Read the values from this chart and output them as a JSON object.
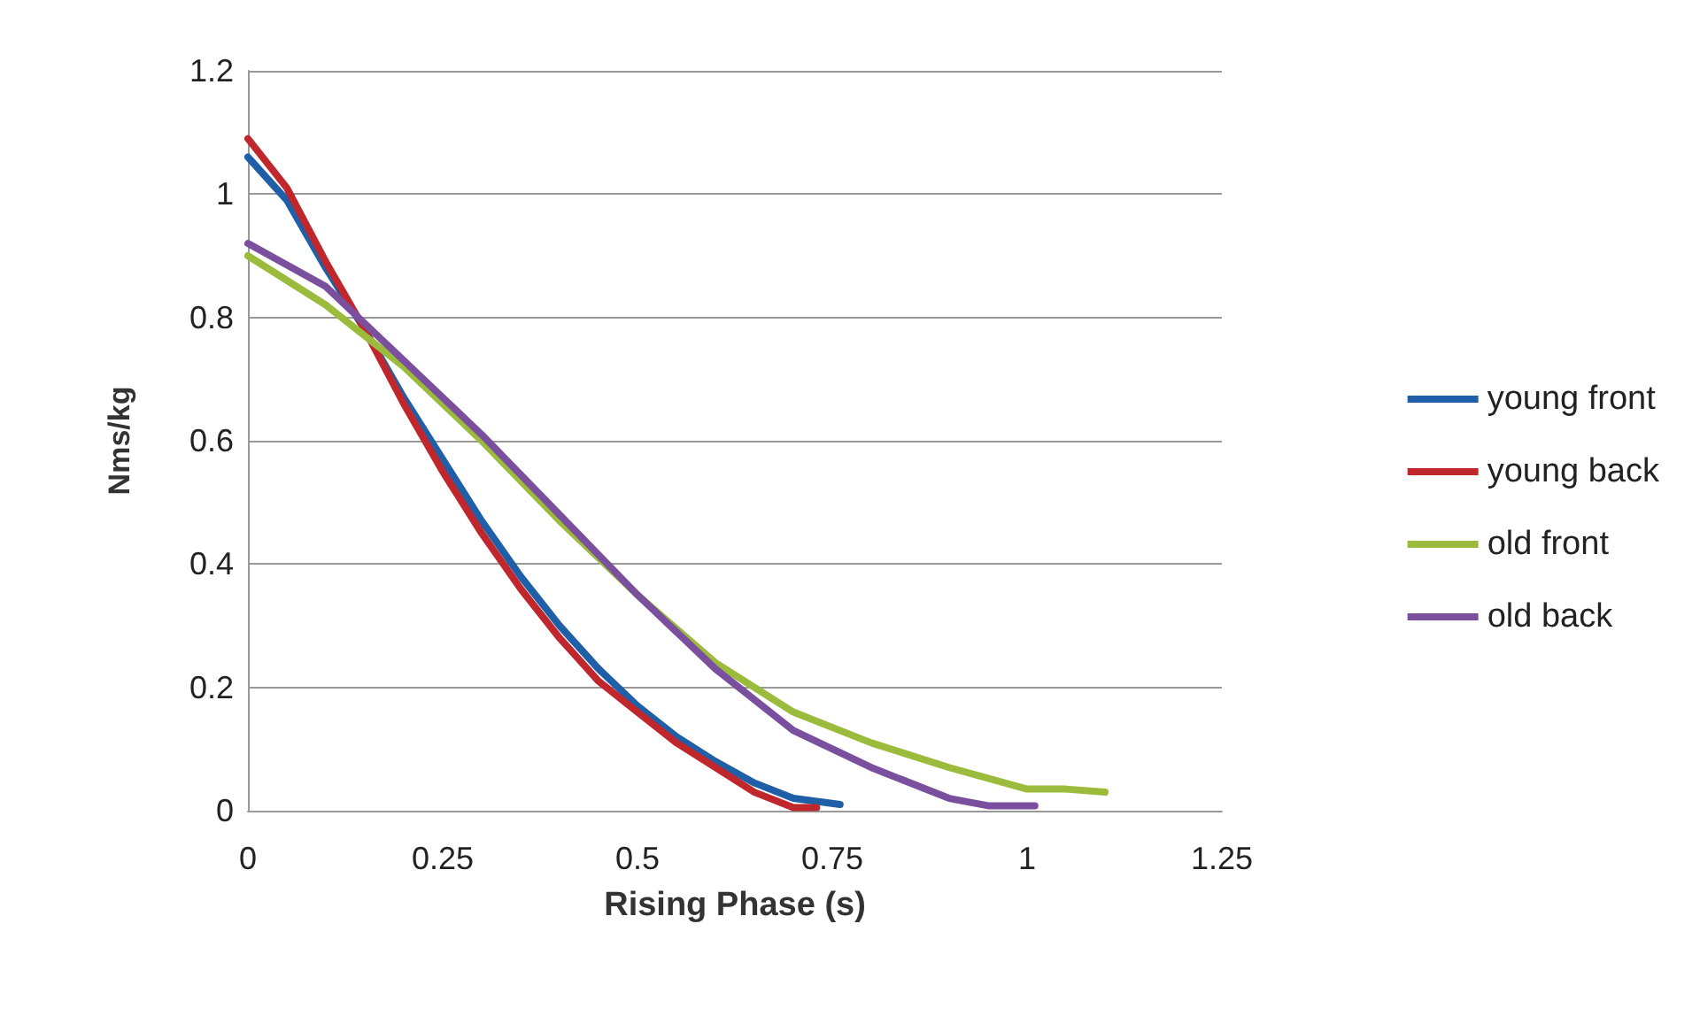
{
  "chart_data": {
    "type": "line",
    "xlabel": "Rising Phase (s)",
    "ylabel": "Nms/kg",
    "xlim": [
      0,
      1.25
    ],
    "xticks": [
      0,
      0.25,
      0.5,
      0.75,
      1,
      1.25
    ],
    "ylim": [
      0,
      1.2
    ],
    "yticks": [
      0,
      0.2,
      0.4,
      0.6,
      0.8,
      1,
      1.2
    ],
    "grid": "y",
    "legend": "right",
    "marker": "none",
    "line_style": "solid",
    "series": [
      {
        "name": "young front",
        "color": "#1f5fa8",
        "x": [
          0,
          0.05,
          0.1,
          0.15,
          0.2,
          0.25,
          0.3,
          0.35,
          0.4,
          0.45,
          0.5,
          0.55,
          0.6,
          0.65,
          0.7,
          0.76
        ],
        "values": [
          1.06,
          0.99,
          0.88,
          0.78,
          0.67,
          0.57,
          0.47,
          0.38,
          0.3,
          0.23,
          0.17,
          0.12,
          0.08,
          0.045,
          0.02,
          0.01
        ]
      },
      {
        "name": "young back",
        "color": "#c0272d",
        "x": [
          0,
          0.05,
          0.1,
          0.15,
          0.2,
          0.25,
          0.3,
          0.35,
          0.4,
          0.45,
          0.5,
          0.55,
          0.6,
          0.65,
          0.7,
          0.73
        ],
        "values": [
          1.09,
          1.01,
          0.89,
          0.78,
          0.66,
          0.55,
          0.45,
          0.36,
          0.28,
          0.21,
          0.16,
          0.11,
          0.07,
          0.03,
          0.005,
          0.005
        ]
      },
      {
        "name": "old front",
        "color": "#9bbb3c",
        "x": [
          0,
          0.1,
          0.2,
          0.3,
          0.4,
          0.5,
          0.6,
          0.7,
          0.8,
          0.9,
          1,
          1.05,
          1.1
        ],
        "values": [
          0.9,
          0.82,
          0.72,
          0.6,
          0.47,
          0.35,
          0.24,
          0.16,
          0.11,
          0.07,
          0.035,
          0.035,
          0.03
        ]
      },
      {
        "name": "old back",
        "color": "#7a4f9e",
        "x": [
          0,
          0.1,
          0.2,
          0.3,
          0.4,
          0.5,
          0.6,
          0.7,
          0.8,
          0.9,
          0.95,
          1.01
        ],
        "values": [
          0.92,
          0.85,
          0.73,
          0.61,
          0.48,
          0.35,
          0.23,
          0.13,
          0.07,
          0.02,
          0.008,
          0.008
        ]
      }
    ]
  }
}
